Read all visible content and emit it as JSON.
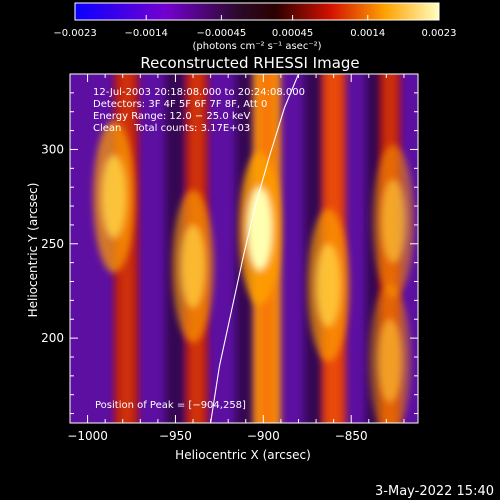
{
  "chart_data": {
    "type": "heatmap",
    "title": "Reconstructed RHESSI Image",
    "xlabel": "Heliocentric X (arcsec)",
    "ylabel": "Heliocentric Y (arcsec)",
    "xlim": [
      -1010,
      -812
    ],
    "ylim": [
      155,
      340
    ],
    "x_ticks": [
      -1000,
      -950,
      -900,
      -850
    ],
    "x_tick_labels": [
      "−1000",
      "−950",
      "−900",
      "−850"
    ],
    "y_ticks": [
      200,
      250,
      300
    ],
    "y_tick_labels": [
      "200",
      "250",
      "300"
    ],
    "annotations": [
      "12-Jul-2003 20:18:08.000 to 20:24:08.000",
      "Detectors: 3F 4F 5F 6F 7F 8F, Att 0",
      "Energy Range: 12.0 − 25.0 keV",
      "Clean    Total counts: 3.17E+03"
    ],
    "peak_label": "Position of Peak = [−904,258]",
    "peak": [
      -904,
      258
    ],
    "limb_curve": [
      [
        -930,
        155
      ],
      [
        -925,
        185
      ],
      [
        -918,
        215
      ],
      [
        -911,
        245
      ],
      [
        -904,
        272
      ],
      [
        -896,
        298
      ],
      [
        -888,
        322
      ],
      [
        -880,
        340
      ]
    ],
    "stripes": [
      {
        "x": -978,
        "width": 14,
        "intensity": 0.55
      },
      {
        "x": -938,
        "width": 13,
        "intensity": 0.65
      },
      {
        "x": -898,
        "width": 16,
        "intensity": 1.0
      },
      {
        "x": -860,
        "width": 14,
        "intensity": 0.75
      },
      {
        "x": -828,
        "width": 12,
        "intensity": 0.55
      }
    ],
    "hot_spots": [
      {
        "x": -985,
        "y": 275,
        "value": 0.85
      },
      {
        "x": -940,
        "y": 238,
        "value": 0.75
      },
      {
        "x": -902,
        "y": 258,
        "value": 1.0
      },
      {
        "x": -863,
        "y": 228,
        "value": 0.8
      },
      {
        "x": -826,
        "y": 262,
        "value": 0.6
      },
      {
        "x": -828,
        "y": 188,
        "value": 0.55
      }
    ],
    "colorbar": {
      "min": -0.0023,
      "max": 0.0023,
      "ticks": [
        -0.0023,
        -0.0014,
        -0.00045,
        0.00045,
        0.0014,
        0.0023
      ],
      "tick_labels": [
        "−0.0023",
        "−0.0014",
        "−0.00045",
        "0.00045",
        "0.0014",
        "0.0023"
      ],
      "unit_label": "(photons cm⁻² s⁻¹ asec⁻²)"
    }
  },
  "timestamp": "3-May-2022 15:40"
}
